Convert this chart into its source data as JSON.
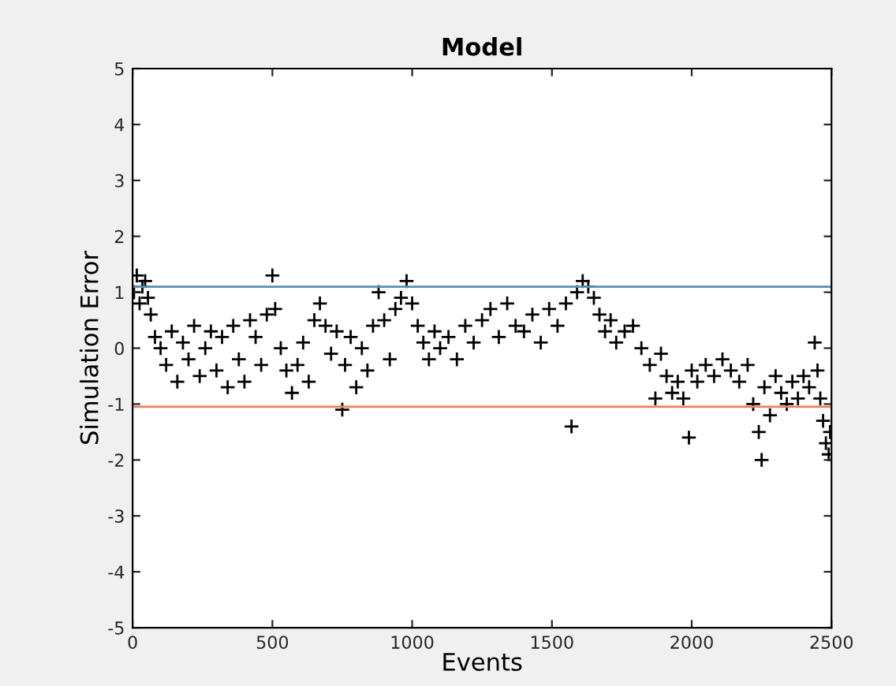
{
  "chart_data": {
    "type": "scatter",
    "title": "Model",
    "xlabel": "Events",
    "ylabel": "Simulation Error",
    "xlim": [
      0,
      2500
    ],
    "ylim": [
      -5,
      5
    ],
    "xticks": [
      0,
      500,
      1000,
      1500,
      2000,
      2500
    ],
    "yticks": [
      -5,
      -4,
      -3,
      -2,
      -1,
      0,
      1,
      2,
      3,
      4,
      5
    ],
    "marker": "cross",
    "grid": false,
    "legend": false,
    "ref_lines": [
      {
        "axis": "y",
        "value": 1.1,
        "color": "#5b8fb0"
      },
      {
        "axis": "y",
        "value": -1.05,
        "color": "#e8825a"
      }
    ],
    "series": [
      {
        "color": "#000000",
        "x": [
          5,
          15,
          25,
          35,
          45,
          55,
          65,
          80,
          100,
          120,
          140,
          160,
          180,
          200,
          220,
          240,
          260,
          280,
          300,
          320,
          340,
          360,
          380,
          400,
          420,
          440,
          460,
          480,
          500,
          510,
          530,
          550,
          570,
          590,
          610,
          630,
          650,
          670,
          690,
          710,
          730,
          750,
          760,
          780,
          800,
          820,
          840,
          860,
          880,
          900,
          920,
          940,
          960,
          980,
          1000,
          1020,
          1040,
          1060,
          1080,
          1100,
          1130,
          1160,
          1190,
          1220,
          1250,
          1280,
          1310,
          1340,
          1370,
          1400,
          1430,
          1460,
          1490,
          1520,
          1550,
          1570,
          1590,
          1610,
          1630,
          1650,
          1670,
          1690,
          1710,
          1730,
          1760,
          1790,
          1820,
          1850,
          1870,
          1890,
          1910,
          1930,
          1950,
          1970,
          1990,
          2000,
          2020,
          2050,
          2080,
          2110,
          2140,
          2170,
          2200,
          2220,
          2240,
          2250,
          2260,
          2280,
          2300,
          2320,
          2340,
          2360,
          2380,
          2400,
          2420,
          2440,
          2450,
          2460,
          2470,
          2480,
          2490,
          2495
        ],
        "values": [
          1.0,
          1.3,
          0.8,
          1.1,
          1.2,
          0.9,
          0.6,
          0.2,
          0.0,
          -0.3,
          0.3,
          -0.6,
          0.1,
          -0.2,
          0.4,
          -0.5,
          0.0,
          0.3,
          -0.4,
          0.2,
          -0.7,
          0.4,
          -0.2,
          -0.6,
          0.5,
          0.2,
          -0.3,
          0.6,
          1.3,
          0.7,
          0.0,
          -0.4,
          -0.8,
          -0.3,
          0.1,
          -0.6,
          0.5,
          0.8,
          0.4,
          -0.1,
          0.3,
          -1.1,
          -0.3,
          0.2,
          -0.7,
          0.0,
          -0.4,
          0.4,
          1.0,
          0.5,
          -0.2,
          0.7,
          0.9,
          1.2,
          0.8,
          0.4,
          0.1,
          -0.2,
          0.3,
          0.0,
          0.2,
          -0.2,
          0.4,
          0.1,
          0.5,
          0.7,
          0.2,
          0.8,
          0.4,
          0.3,
          0.6,
          0.1,
          0.7,
          0.4,
          0.8,
          -1.4,
          1.0,
          1.2,
          1.1,
          0.9,
          0.6,
          0.3,
          0.5,
          0.1,
          0.3,
          0.4,
          0.0,
          -0.3,
          -0.9,
          -0.1,
          -0.5,
          -0.8,
          -0.6,
          -0.9,
          -1.6,
          -0.4,
          -0.6,
          -0.3,
          -0.5,
          -0.2,
          -0.4,
          -0.6,
          -0.3,
          -1.0,
          -1.5,
          -2.0,
          -0.7,
          -1.2,
          -0.5,
          -0.8,
          -1.0,
          -0.6,
          -0.9,
          -0.5,
          -0.7,
          0.1,
          -0.4,
          -0.9,
          -1.3,
          -1.7,
          -1.9,
          -1.5
        ]
      }
    ]
  }
}
